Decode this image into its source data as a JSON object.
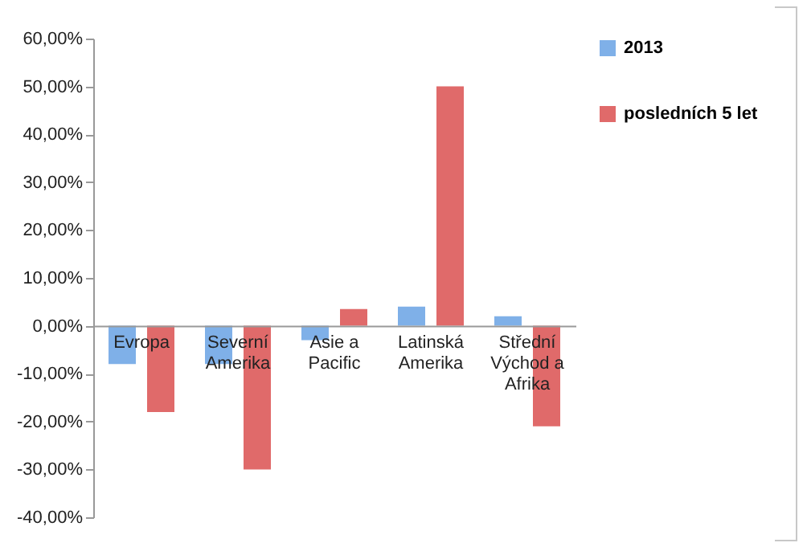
{
  "chart_data": {
    "type": "bar",
    "categories": [
      "Evropa",
      "Severní Amerika",
      "Asie a Pacific",
      "Latinská Amerika",
      "Střední Východ a Afrika"
    ],
    "series": [
      {
        "name": "2013",
        "color": "#7fb0e8",
        "values": [
          -8,
          -8,
          -3,
          4,
          2
        ]
      },
      {
        "name": "posledních 5 let",
        "color": "#e06a6a",
        "values": [
          -18,
          -30,
          3.5,
          50,
          -21
        ]
      }
    ],
    "ylim": [
      -40,
      60
    ],
    "yticks": [
      {
        "value": -40,
        "label": "-40,00%"
      },
      {
        "value": -30,
        "label": "-30,00%"
      },
      {
        "value": -20,
        "label": "-20,00%"
      },
      {
        "value": -10,
        "label": "-10,00%"
      },
      {
        "value": 0,
        "label": "0,00%"
      },
      {
        "value": 10,
        "label": "10,00%"
      },
      {
        "value": 20,
        "label": "20,00%"
      },
      {
        "value": 30,
        "label": "30,00%"
      },
      {
        "value": 40,
        "label": "40,00%"
      },
      {
        "value": 50,
        "label": "50,00%"
      },
      {
        "value": 60,
        "label": "60,00%"
      }
    ],
    "grid": false,
    "legend": "right"
  }
}
